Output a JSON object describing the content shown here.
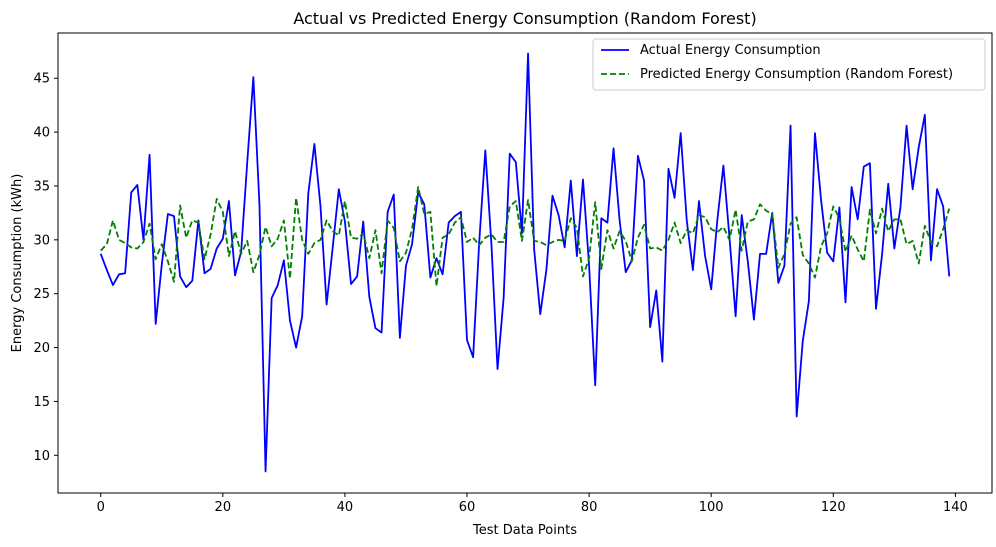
{
  "chart_data": {
    "type": "line",
    "title": "Actual vs Predicted Energy Consumption (Random Forest)",
    "xlabel": "Test Data Points",
    "ylabel": "Energy Consumption (kWh)",
    "xlim": [
      -7,
      146
    ],
    "ylim": [
      6.5,
      49.2
    ],
    "xticks": [
      0,
      20,
      40,
      60,
      80,
      100,
      120,
      140
    ],
    "yticks": [
      10,
      15,
      20,
      25,
      30,
      35,
      40,
      45
    ],
    "grid": false,
    "legend_position": "upper right",
    "series": [
      {
        "name": "Actual Energy Consumption",
        "color": "#0000ff",
        "style": "solid",
        "values": [
          28.7,
          27.2,
          25.8,
          26.8,
          26.9,
          34.4,
          35.1,
          30.0,
          37.9,
          22.2,
          27.7,
          32.4,
          32.2,
          26.6,
          25.6,
          26.2,
          31.8,
          26.9,
          27.3,
          29.2,
          30.1,
          33.6,
          26.7,
          28.9,
          37.2,
          45.1,
          33.3,
          8.5,
          24.6,
          25.8,
          28.1,
          22.5,
          20.0,
          22.9,
          34.3,
          38.9,
          33.1,
          24.0,
          29.3,
          34.7,
          31.7,
          25.9,
          26.6,
          31.7,
          24.7,
          21.8,
          21.4,
          32.6,
          34.2,
          20.9,
          27.6,
          29.6,
          34.4,
          33.3,
          26.5,
          28.3,
          26.8,
          31.6,
          32.2,
          32.6,
          20.7,
          19.1,
          29.8,
          38.3,
          29.6,
          18.0,
          24.6,
          38.0,
          37.2,
          30.6,
          47.3,
          29.1,
          23.1,
          27.2,
          34.1,
          32.3,
          29.3,
          35.5,
          28.5,
          35.6,
          27.6,
          16.5,
          32.0,
          31.6,
          38.5,
          31.8,
          27.0,
          28.1,
          37.8,
          35.5,
          21.9,
          25.3,
          18.7,
          36.6,
          33.9,
          39.9,
          31.8,
          27.2,
          33.6,
          28.5,
          25.4,
          31.8,
          36.9,
          30.2,
          22.9,
          32.3,
          28.0,
          22.6,
          28.7,
          28.7,
          32.5,
          26.0,
          27.6,
          40.6,
          13.6,
          20.6,
          24.3,
          39.9,
          33.7,
          28.8,
          28.0,
          33.0,
          24.2,
          34.9,
          31.9,
          36.8,
          37.1,
          23.6,
          28.7,
          35.2,
          29.2,
          33.0,
          40.6,
          34.7,
          38.6,
          41.6,
          28.1,
          34.7,
          33.1,
          26.6
        ]
      },
      {
        "name": "Predicted Energy Consumption (Random Forest)",
        "color": "#008000",
        "style": "dashed",
        "values": [
          29.0,
          29.6,
          31.8,
          30.0,
          29.7,
          29.3,
          29.2,
          29.8,
          31.5,
          28.2,
          29.6,
          28.0,
          26.1,
          33.2,
          30.2,
          31.8,
          31.6,
          28.2,
          30.5,
          33.8,
          32.6,
          28.5,
          30.8,
          28.7,
          29.9,
          27.0,
          28.6,
          31.2,
          29.4,
          30.1,
          31.8,
          26.4,
          33.9,
          30.0,
          28.7,
          29.7,
          30.0,
          31.8,
          30.8,
          30.4,
          33.6,
          30.2,
          30.1,
          30.6,
          28.3,
          30.9,
          26.9,
          31.8,
          31.1,
          28.0,
          28.8,
          31.0,
          34.9,
          32.4,
          32.6,
          25.7,
          30.2,
          30.5,
          31.6,
          32.1,
          29.8,
          30.2,
          29.5,
          30.2,
          30.5,
          29.8,
          29.8,
          33.1,
          33.6,
          29.9,
          33.7,
          29.9,
          29.8,
          29.5,
          29.8,
          30.0,
          29.9,
          32.0,
          31.1,
          26.6,
          28.3,
          33.5,
          27.3,
          30.9,
          29.2,
          30.8,
          29.9,
          28.0,
          30.2,
          31.4,
          29.2,
          29.3,
          29.0,
          30.0,
          31.6,
          29.7,
          30.9,
          30.6,
          32.3,
          32.1,
          31.0,
          30.7,
          31.2,
          30.0,
          32.8,
          29.0,
          31.7,
          31.9,
          33.3,
          32.7,
          32.4,
          27.4,
          28.7,
          31.5,
          32.1,
          28.6,
          27.8,
          26.5,
          29.4,
          30.6,
          33.1,
          32.0,
          28.9,
          30.4,
          29.1,
          28.0,
          32.8,
          30.6,
          32.9,
          30.8,
          31.9,
          31.9,
          29.6,
          29.9,
          27.8,
          31.3,
          29.8,
          29.4,
          31.0,
          32.9
        ]
      }
    ]
  }
}
